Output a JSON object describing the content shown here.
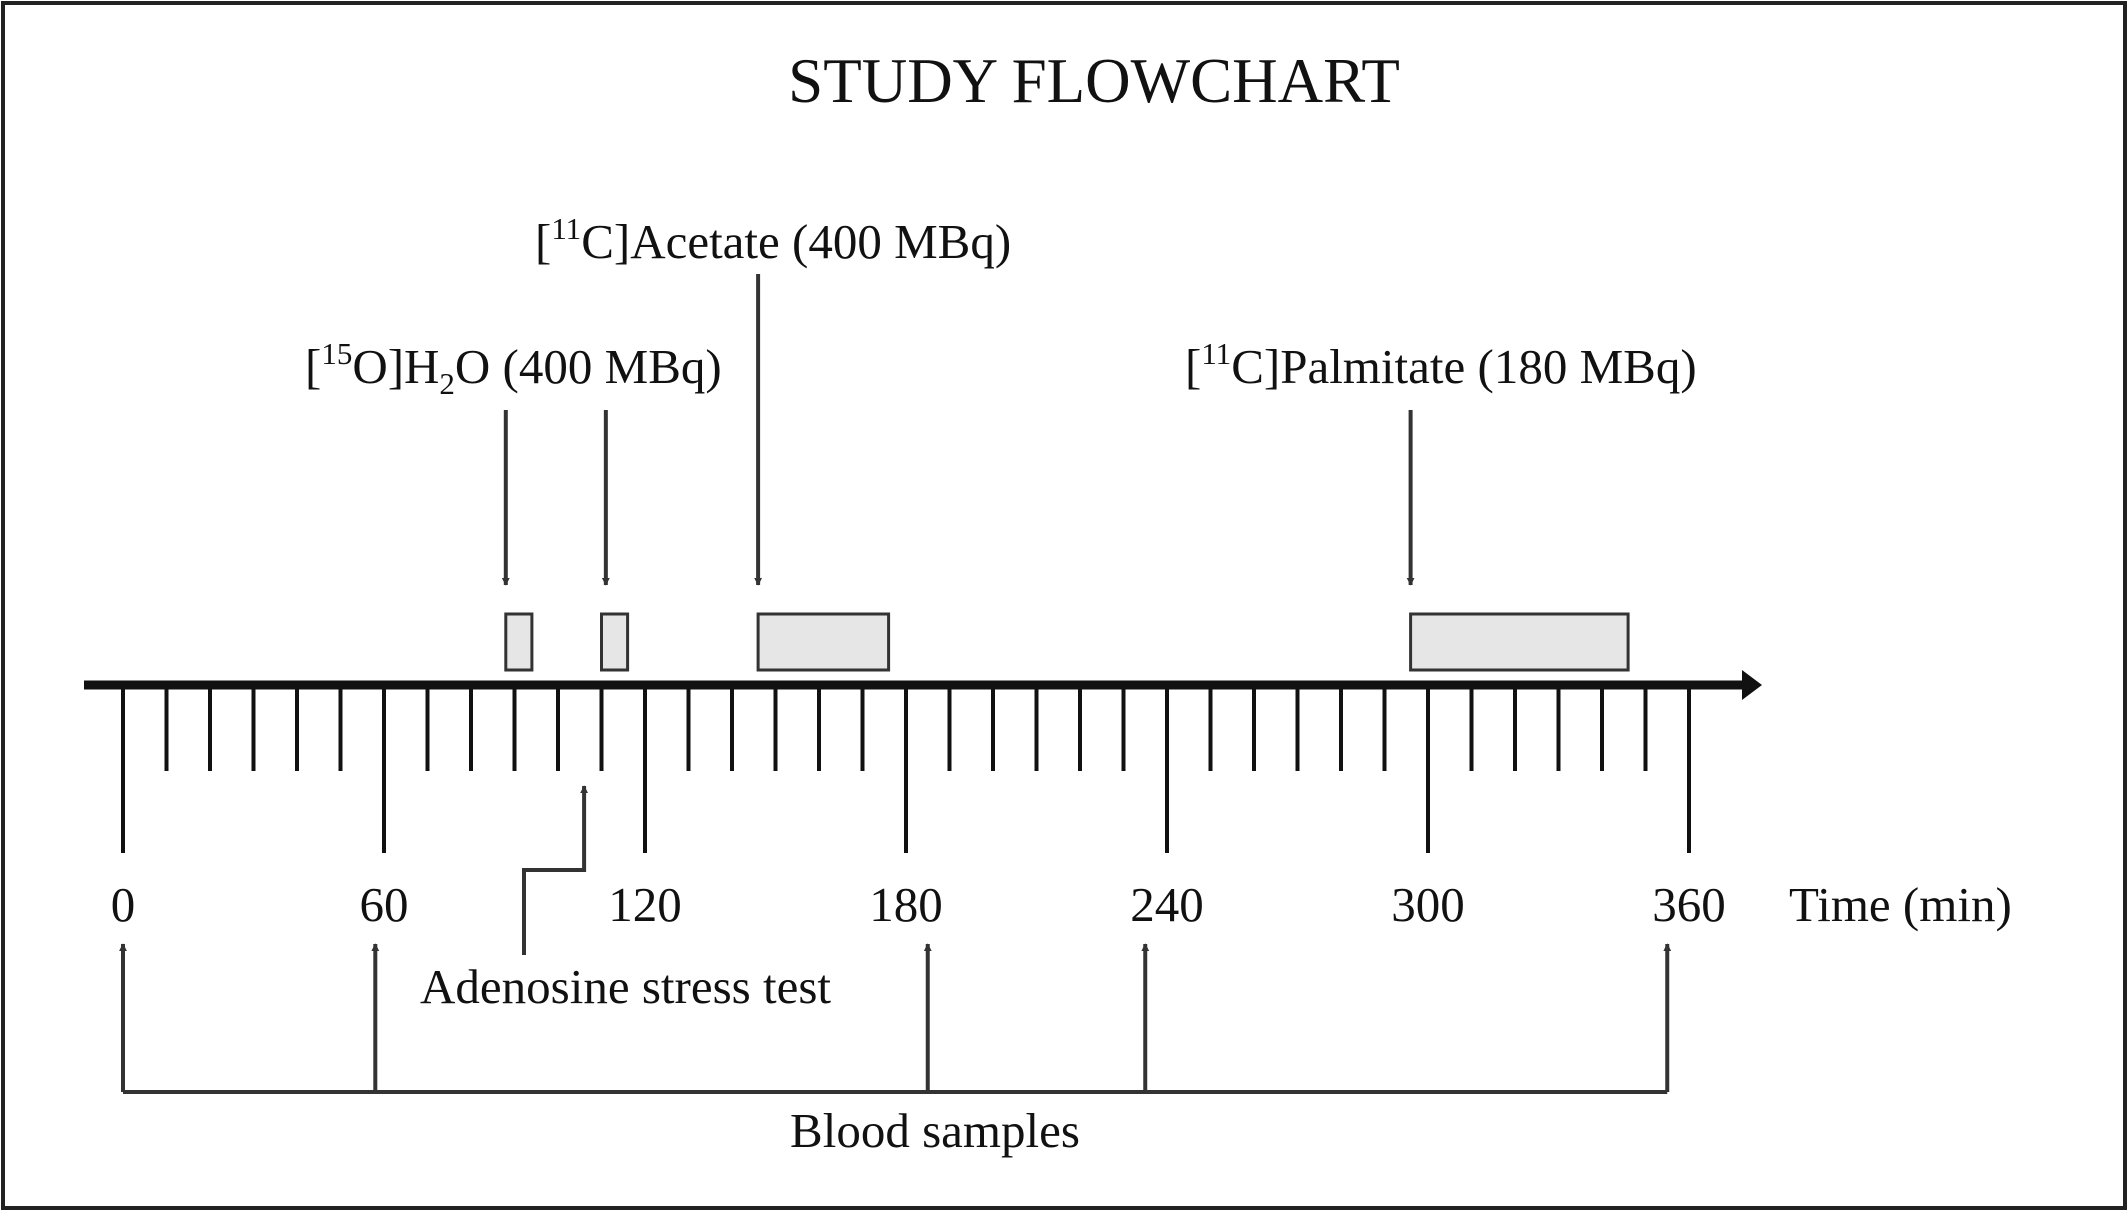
{
  "title": "STUDY FLOWCHART",
  "axis": {
    "unit_label": "Time (min)",
    "tick_labels": [
      "0",
      "60",
      "120",
      "180",
      "240",
      "300",
      "360"
    ],
    "range_min": [
      0,
      360
    ],
    "minor_tick_step_min": 10
  },
  "tracers": [
    {
      "prefix": "[",
      "isotope": "15",
      "element_after": "O]H",
      "subscript": "2",
      "suffix": "O (400 MBq)",
      "injections_min": [
        88,
        111
      ],
      "scans_min": [
        [
          88,
          94
        ],
        [
          110,
          116
        ]
      ]
    },
    {
      "prefix": "[",
      "isotope": "11",
      "element_after": "C]Acetate (400 MBq)",
      "injections_min": [
        146
      ],
      "scans_min": [
        [
          146,
          176
        ]
      ]
    },
    {
      "prefix": "[",
      "isotope": "11",
      "element_after": "C]Palmitate (180 MBq)",
      "injections_min": [
        296
      ],
      "scans_min": [
        [
          296,
          346
        ]
      ]
    }
  ],
  "adenosine": {
    "label": "Adenosine stress test",
    "time_min": 106
  },
  "blood_samples": {
    "label": "Blood samples",
    "times_min": [
      0,
      58,
      185,
      235,
      355
    ]
  },
  "colors": {
    "ink": "#333333",
    "box_fill": "#e6e6e6",
    "frame": "#222222"
  }
}
